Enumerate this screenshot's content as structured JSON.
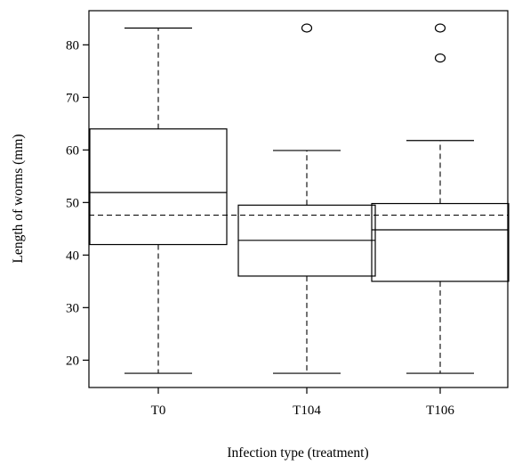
{
  "chart_data": {
    "type": "boxplot",
    "title": "",
    "xlabel": "Infection type (treatment)",
    "ylabel": "Length of worms (mm)",
    "ylim": [
      14.8,
      86.5
    ],
    "yticks": [
      20,
      30,
      40,
      50,
      60,
      70,
      80
    ],
    "categories": [
      "T0",
      "T104",
      "T106"
    ],
    "boxes": [
      {
        "category": "T0",
        "min": 17.5,
        "q1": 42.0,
        "median": 51.9,
        "q3": 64.0,
        "max": 83.2,
        "outliers": []
      },
      {
        "category": "T104",
        "min": 17.5,
        "q1": 36.0,
        "median": 42.8,
        "q3": 49.5,
        "max": 59.9,
        "outliers": [
          83.2
        ]
      },
      {
        "category": "T106",
        "min": 17.5,
        "q1": 35.0,
        "median": 44.8,
        "q3": 49.8,
        "max": 61.8,
        "outliers": [
          83.2,
          77.5
        ]
      }
    ],
    "reference_line": {
      "y": 47.6,
      "style": "dashed"
    },
    "grid": false,
    "legend": "none"
  }
}
